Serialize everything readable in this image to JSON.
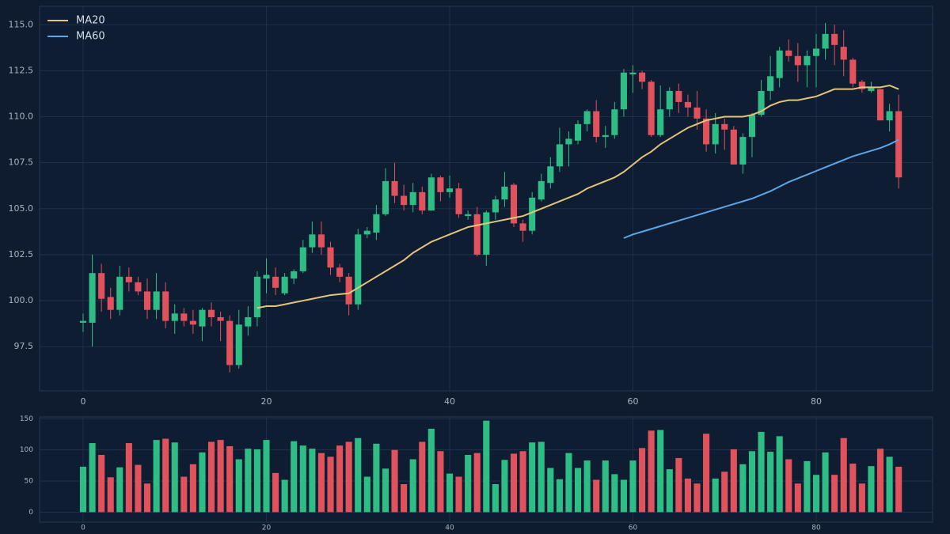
{
  "chart_data": {
    "type": "candlestick",
    "x": [
      0,
      1,
      2,
      3,
      4,
      5,
      6,
      7,
      8,
      9,
      10,
      11,
      12,
      13,
      14,
      15,
      16,
      17,
      18,
      19,
      20,
      21,
      22,
      23,
      24,
      25,
      26,
      27,
      28,
      29,
      30,
      31,
      32,
      33,
      34,
      35,
      36,
      37,
      38,
      39,
      40,
      41,
      42,
      43,
      44,
      45,
      46,
      47,
      48,
      49,
      50,
      51,
      52,
      53,
      54,
      55,
      56,
      57,
      58,
      59,
      60,
      61,
      62,
      63,
      64,
      65,
      66,
      67,
      68,
      69,
      70,
      71,
      72,
      73,
      74,
      75,
      76,
      77,
      78,
      79,
      80,
      81,
      82,
      83,
      84,
      85,
      86,
      87,
      88,
      89
    ],
    "open": [
      98.8,
      98.8,
      101.5,
      100.2,
      99.5,
      101.3,
      101.0,
      100.5,
      99.5,
      100.5,
      98.9,
      99.3,
      98.9,
      98.6,
      99.5,
      99.1,
      98.9,
      96.5,
      98.6,
      99.1,
      101.2,
      101.3,
      100.4,
      101.2,
      101.6,
      102.9,
      103.6,
      102.9,
      101.8,
      101.3,
      99.8,
      103.6,
      103.7,
      104.7,
      106.5,
      105.7,
      105.2,
      105.9,
      104.9,
      106.7,
      105.9,
      106.1,
      104.6,
      104.7,
      102.5,
      104.8,
      105.5,
      106.3,
      104.2,
      103.8,
      105.5,
      106.4,
      107.3,
      108.5,
      108.7,
      109.6,
      110.3,
      108.9,
      109.0,
      110.4,
      112.3,
      112.4,
      111.9,
      109.0,
      110.4,
      111.4,
      110.8,
      110.5,
      109.9,
      108.5,
      109.6,
      109.3,
      107.4,
      108.9,
      110.1,
      111.4,
      112.1,
      113.6,
      113.3,
      112.8,
      113.3,
      113.7,
      114.5,
      113.8,
      113.1,
      111.9,
      111.4,
      111.5,
      109.8,
      110.3
    ],
    "high": [
      99.3,
      102.5,
      102.0,
      100.7,
      101.9,
      101.8,
      101.3,
      101.2,
      101.5,
      101.0,
      99.8,
      99.6,
      99.5,
      99.6,
      99.9,
      99.4,
      99.2,
      99.5,
      99.7,
      101.6,
      102.3,
      101.8,
      101.5,
      101.7,
      103.3,
      104.3,
      104.3,
      103.2,
      102.0,
      101.5,
      103.9,
      104.0,
      105.2,
      107.2,
      107.5,
      106.3,
      106.4,
      106.2,
      106.9,
      106.8,
      106.8,
      106.4,
      104.9,
      105.1,
      104.9,
      105.7,
      107.0,
      106.4,
      104.4,
      105.9,
      106.9,
      107.8,
      109.4,
      109.2,
      109.8,
      110.4,
      110.9,
      109.5,
      110.8,
      112.6,
      112.8,
      112.5,
      112.0,
      111.7,
      111.6,
      111.8,
      111.2,
      111.4,
      110.4,
      110.2,
      109.9,
      109.5,
      109.1,
      110.2,
      112.0,
      113.3,
      113.8,
      114.2,
      114.0,
      113.6,
      114.5,
      115.1,
      115.0,
      114.7,
      113.2,
      112.0,
      111.9,
      111.5,
      110.7,
      111.2
    ],
    "low": [
      98.3,
      97.5,
      99.4,
      99.0,
      99.2,
      100.5,
      100.3,
      99.0,
      99.0,
      98.5,
      98.2,
      98.6,
      98.2,
      97.8,
      98.6,
      97.8,
      96.1,
      96.3,
      98.1,
      98.6,
      100.4,
      100.3,
      100.3,
      100.9,
      101.5,
      102.6,
      102.5,
      101.4,
      101.0,
      99.2,
      99.5,
      103.4,
      103.3,
      104.6,
      105.3,
      104.9,
      104.8,
      104.7,
      104.9,
      105.4,
      105.6,
      104.5,
      104.4,
      102.4,
      101.9,
      104.4,
      105.1,
      104.0,
      103.2,
      103.6,
      105.4,
      106.1,
      107.0,
      107.3,
      108.5,
      109.2,
      108.6,
      108.3,
      108.8,
      110.0,
      111.3,
      111.5,
      108.9,
      108.9,
      110.0,
      110.2,
      110.0,
      109.3,
      108.1,
      108.0,
      108.2,
      107.4,
      106.9,
      107.8,
      110.0,
      110.9,
      111.6,
      113.0,
      111.9,
      111.6,
      111.6,
      113.1,
      112.8,
      112.2,
      111.6,
      111.3,
      111.3,
      109.8,
      109.2,
      106.1
    ],
    "close": [
      98.9,
      101.5,
      100.1,
      99.5,
      101.3,
      101.0,
      100.5,
      99.5,
      100.5,
      98.9,
      99.3,
      98.9,
      98.7,
      99.5,
      99.1,
      98.9,
      96.5,
      98.7,
      99.1,
      101.3,
      101.4,
      100.7,
      101.3,
      101.6,
      102.9,
      103.6,
      102.9,
      101.8,
      101.3,
      99.8,
      103.6,
      103.8,
      104.7,
      106.5,
      105.7,
      105.2,
      105.9,
      104.9,
      106.7,
      105.9,
      106.1,
      104.7,
      104.7,
      102.5,
      104.8,
      105.5,
      106.2,
      104.2,
      103.8,
      105.6,
      106.5,
      107.3,
      108.5,
      108.8,
      109.6,
      110.3,
      108.9,
      109.0,
      110.4,
      112.4,
      112.4,
      111.9,
      109.0,
      110.4,
      111.4,
      110.8,
      110.5,
      109.9,
      108.5,
      109.6,
      109.3,
      107.4,
      108.9,
      110.1,
      111.4,
      112.2,
      113.6,
      113.3,
      112.8,
      113.3,
      113.7,
      114.5,
      113.9,
      113.1,
      111.8,
      111.5,
      111.6,
      109.8,
      110.3,
      106.7
    ],
    "up_color": "#2ebd85",
    "down_color": "#e0525c",
    "series": [
      {
        "name": "MA20",
        "color": "#e3c47a",
        "values": [
          null,
          null,
          null,
          null,
          null,
          null,
          null,
          null,
          null,
          null,
          null,
          null,
          null,
          null,
          null,
          null,
          null,
          null,
          null,
          99.6,
          99.7,
          99.7,
          99.8,
          99.9,
          100.0,
          100.1,
          100.2,
          100.3,
          100.35,
          100.4,
          100.7,
          101.0,
          101.3,
          101.6,
          101.9,
          102.2,
          102.6,
          102.9,
          103.2,
          103.4,
          103.6,
          103.8,
          104.0,
          104.1,
          104.2,
          104.3,
          104.4,
          104.5,
          104.6,
          104.8,
          105.0,
          105.2,
          105.4,
          105.6,
          105.8,
          106.1,
          106.3,
          106.5,
          106.7,
          107.0,
          107.4,
          107.8,
          108.1,
          108.5,
          108.8,
          109.1,
          109.4,
          109.6,
          109.8,
          109.9,
          110.0,
          110.0,
          110.0,
          110.1,
          110.3,
          110.6,
          110.8,
          110.9,
          110.9,
          111.0,
          111.1,
          111.3,
          111.5,
          111.5,
          111.5,
          111.6,
          111.6,
          111.6,
          111.7,
          111.5
        ]
      },
      {
        "name": "MA60",
        "color": "#5aa6e8",
        "values": [
          null,
          null,
          null,
          null,
          null,
          null,
          null,
          null,
          null,
          null,
          null,
          null,
          null,
          null,
          null,
          null,
          null,
          null,
          null,
          null,
          null,
          null,
          null,
          null,
          null,
          null,
          null,
          null,
          null,
          null,
          null,
          null,
          null,
          null,
          null,
          null,
          null,
          null,
          null,
          null,
          null,
          null,
          null,
          null,
          null,
          null,
          null,
          null,
          null,
          null,
          null,
          null,
          null,
          null,
          null,
          null,
          null,
          null,
          null,
          103.4,
          103.6,
          103.75,
          103.9,
          104.05,
          104.2,
          104.35,
          104.5,
          104.65,
          104.8,
          104.95,
          105.1,
          105.25,
          105.4,
          105.55,
          105.75,
          105.95,
          106.2,
          106.45,
          106.65,
          106.85,
          107.05,
          107.25,
          107.45,
          107.65,
          107.85,
          108.0,
          108.15,
          108.3,
          108.5,
          108.75
        ]
      }
    ],
    "volume": [
      73,
      111,
      92,
      56,
      72,
      111,
      76,
      46,
      116,
      118,
      112,
      57,
      77,
      96,
      113,
      116,
      106,
      85,
      102,
      101,
      116,
      63,
      52,
      114,
      107,
      102,
      95,
      89,
      107,
      113,
      119,
      57,
      110,
      70,
      100,
      45,
      85,
      113,
      134,
      98,
      62,
      57,
      92,
      95,
      147,
      45,
      84,
      94,
      98,
      112,
      113,
      71,
      53,
      95,
      71,
      83,
      52,
      83,
      61,
      52,
      83,
      103,
      131,
      132,
      69,
      87,
      54,
      46,
      126,
      54,
      65,
      101,
      77,
      98,
      129,
      97,
      122,
      85,
      46,
      82,
      60,
      96,
      60,
      119,
      78,
      46,
      74,
      102,
      89,
      73
    ],
    "xlim": [
      -4.75,
      92.7
    ],
    "xticks": [
      0,
      20,
      40,
      60,
      80
    ],
    "ylim": [
      95.1,
      116.0
    ],
    "yticks": [
      {
        "value": 97.5,
        "label": "97.5"
      },
      {
        "value": 100,
        "label": "100.0"
      },
      {
        "value": 102.5,
        "label": "102.5"
      },
      {
        "value": 105,
        "label": "105.0"
      },
      {
        "value": 107.5,
        "label": "107.5"
      },
      {
        "value": 110,
        "label": "110.0"
      },
      {
        "value": 112.5,
        "label": "112.5"
      },
      {
        "value": 115,
        "label": "115.0"
      }
    ],
    "volume_ylim": [
      -16,
      153
    ],
    "volume_yticks": [
      0,
      50,
      100,
      150
    ],
    "grid": true,
    "legend": "upper left"
  }
}
